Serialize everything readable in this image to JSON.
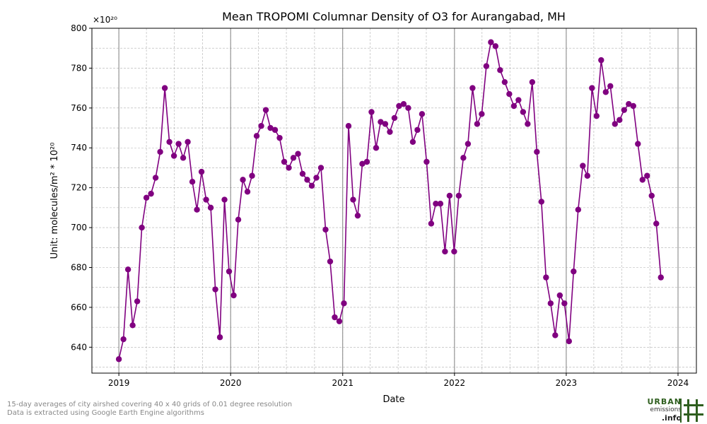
{
  "chart_data": {
    "type": "line",
    "title": "Mean TROPOMI Columnar Density of O3 for Aurangabad, MH",
    "xlabel": "Date",
    "ylabel": "Unit: molecules/m² * 10²⁰",
    "scale_note": "×10²⁰",
    "xlim": [
      "2018-10-05",
      "2024-03-01"
    ],
    "ylim": [
      627,
      800
    ],
    "x_ticks": [
      "2019",
      "2020",
      "2021",
      "2022",
      "2023",
      "2024"
    ],
    "y_ticks": [
      "640",
      "660",
      "680",
      "700",
      "720",
      "740",
      "760",
      "780",
      "800"
    ],
    "grid": true,
    "marker_color": "#800080",
    "series": [
      {
        "x_start": "2019-01-01",
        "interval_days": 15,
        "values": [
          634,
          644,
          679,
          651,
          663,
          700,
          715,
          717,
          725,
          738,
          770,
          743,
          736,
          742,
          735,
          743,
          723,
          709,
          728,
          714,
          710,
          669,
          645,
          714,
          678,
          666,
          704,
          724,
          718,
          726,
          746,
          751,
          759,
          750,
          749,
          745,
          733,
          730,
          735,
          737,
          727,
          724,
          721,
          725,
          730,
          699,
          683,
          655,
          653,
          662,
          751,
          714,
          706,
          732,
          733,
          758,
          740,
          753,
          752,
          748,
          755,
          761,
          762,
          760,
          743,
          749,
          757,
          733,
          702,
          712,
          712,
          688,
          716,
          688,
          716,
          735,
          742,
          770,
          752,
          757,
          781,
          793,
          791,
          779,
          773,
          767,
          761,
          764,
          758,
          752,
          773,
          738,
          713,
          675,
          662,
          646,
          666,
          662,
          643,
          678,
          709,
          731,
          726,
          770,
          756,
          784,
          768,
          771,
          752,
          754,
          759,
          762,
          761,
          742,
          724,
          726,
          716,
          702,
          675
        ]
      }
    ]
  },
  "footnotes": [
    "15-day averages of city airshed covering 40 x 40 grids of 0.01 degree resolution",
    "Data is extracted using Google Earth Engine algorithms"
  ],
  "logo": {
    "line1": "URBAN",
    "line2": "emissions",
    "line3": ".info",
    "color": "#2e5e1e"
  }
}
